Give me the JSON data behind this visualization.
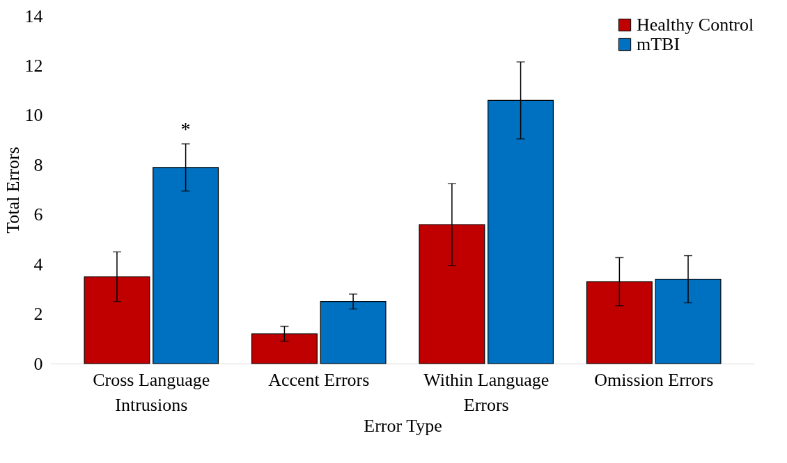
{
  "chart_data": {
    "type": "bar",
    "xlabel": "Error Type",
    "ylabel": "Total Errors",
    "categories": [
      "Cross Language Intrusions",
      "Accent Errors",
      "Within Language Errors",
      "Omission Errors"
    ],
    "series": [
      {
        "name": "Healthy Control",
        "color": "#c00000",
        "values": [
          3.5,
          1.2,
          5.6,
          3.3
        ],
        "errors": [
          1.0,
          0.3,
          1.65,
          0.97
        ]
      },
      {
        "name": "mTBI",
        "color": "#0070c0",
        "values": [
          7.9,
          2.5,
          10.6,
          3.4
        ],
        "errors": [
          0.95,
          0.3,
          1.55,
          0.95
        ]
      }
    ],
    "ylim": [
      0,
      14
    ],
    "yticks": [
      0,
      2,
      4,
      6,
      8,
      10,
      12,
      14
    ],
    "annotations": [
      "*"
    ],
    "grid": false,
    "legend": "top right"
  }
}
